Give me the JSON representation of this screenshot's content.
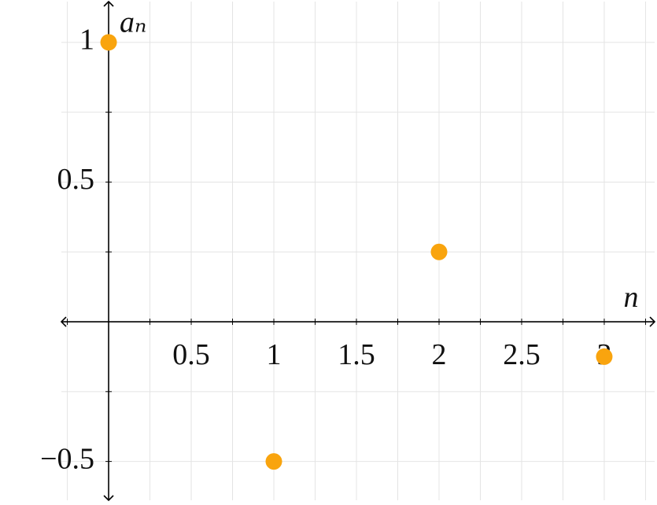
{
  "chart_data": {
    "type": "scatter",
    "x_label": "n",
    "y_label": "aₙ",
    "series": [
      {
        "color": "#f9a40e",
        "x": [
          0,
          1,
          2,
          3
        ],
        "values": [
          1,
          -0.5,
          0.25,
          -0.125
        ]
      }
    ],
    "xlim": [
      -0.286,
      3.305
    ],
    "ylim": [
      -0.639,
      1.146
    ],
    "xticks": [
      0.5,
      1,
      1.5,
      2,
      2.5,
      3
    ],
    "yticks": [
      {
        "value": -0.5,
        "label": "−0.5"
      },
      0.5,
      1
    ],
    "xminorticks": [
      -0.25,
      0.25,
      0.75,
      1.25,
      1.75,
      2.25,
      2.75,
      3.25
    ],
    "yminorticks": [
      -0.25,
      0.25,
      0.75
    ],
    "grid": true
  }
}
